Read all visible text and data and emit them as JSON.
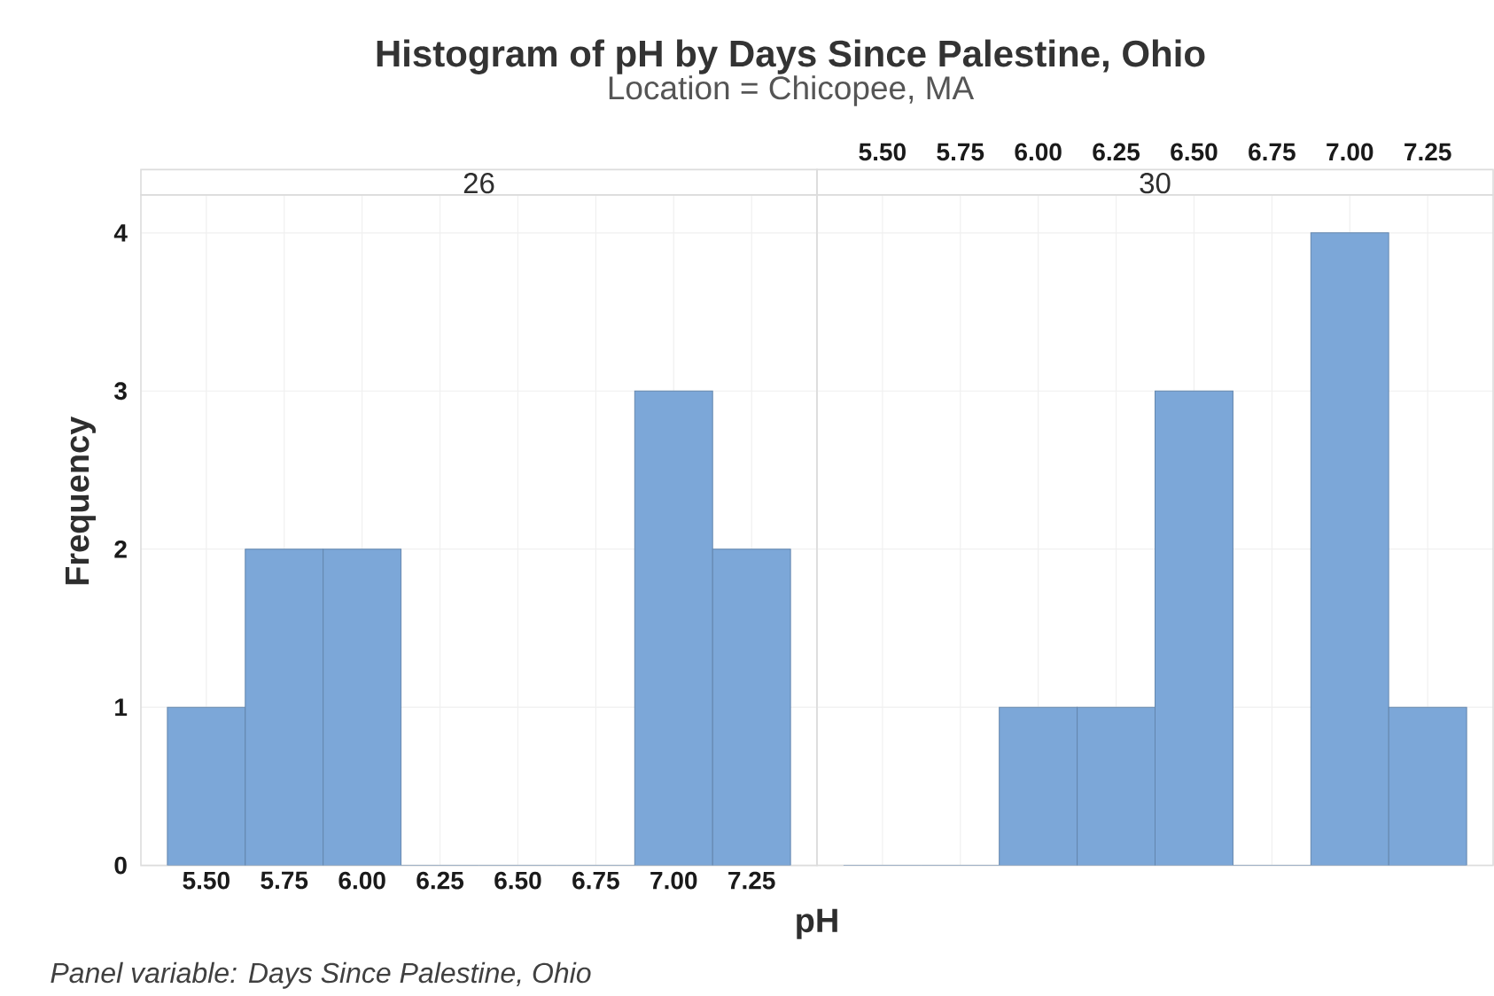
{
  "chart_data": [
    {
      "type": "histogram",
      "title": "Histogram of pH by Days Since Palestine, Ohio",
      "subtitle": "Location = Chicopee, MA",
      "xlabel": "pH",
      "ylabel": "Frequency",
      "annotations": [
        "26",
        "Panel variable: Days Since Palestine, Ohio"
      ],
      "bins": [
        5.375,
        5.625,
        5.875,
        6.125,
        6.375,
        6.625,
        6.875,
        7.125,
        7.375
      ],
      "values": [
        1,
        2,
        2,
        0,
        0,
        0,
        3,
        2
      ],
      "color": "#7ca7d8",
      "xlim": [
        5.29,
        7.46
      ],
      "ylim": [
        0,
        4.24
      ],
      "xticks": [
        {
          "value": 5.5,
          "label": "5.50"
        },
        {
          "value": 5.75,
          "label": "5.75"
        },
        {
          "value": 6,
          "label": "6.00"
        },
        {
          "value": 6.25,
          "label": "6.25"
        },
        {
          "value": 6.5,
          "label": "6.50"
        },
        {
          "value": 6.75,
          "label": "6.75"
        },
        {
          "value": 7,
          "label": "7.00"
        },
        {
          "value": 7.25,
          "label": "7.25"
        }
      ],
      "yticks": [
        0,
        1,
        2,
        3,
        4
      ],
      "grid": true
    },
    {
      "type": "histogram",
      "annotations": [
        "30"
      ],
      "bins": [
        5.375,
        5.625,
        5.875,
        6.125,
        6.375,
        6.625,
        6.875,
        7.125,
        7.375
      ],
      "values": [
        0,
        0,
        1,
        1,
        3,
        0,
        4,
        1
      ],
      "color": "#7ca7d8",
      "xlim": [
        5.29,
        7.46
      ],
      "ylim": [
        0,
        4.24
      ],
      "xticks": [
        {
          "value": 5.5,
          "label": "5.50"
        },
        {
          "value": 5.75,
          "label": "5.75"
        },
        {
          "value": 6,
          "label": "6.00"
        },
        {
          "value": 6.25,
          "label": "6.25"
        },
        {
          "value": 6.5,
          "label": "6.50"
        },
        {
          "value": 6.75,
          "label": "6.75"
        },
        {
          "value": 7,
          "label": "7.00"
        },
        {
          "value": 7.25,
          "label": "7.25"
        }
      ],
      "yticks": [
        0,
        1,
        2,
        3,
        4
      ],
      "tick_labels": "x",
      "grid": true
    }
  ]
}
